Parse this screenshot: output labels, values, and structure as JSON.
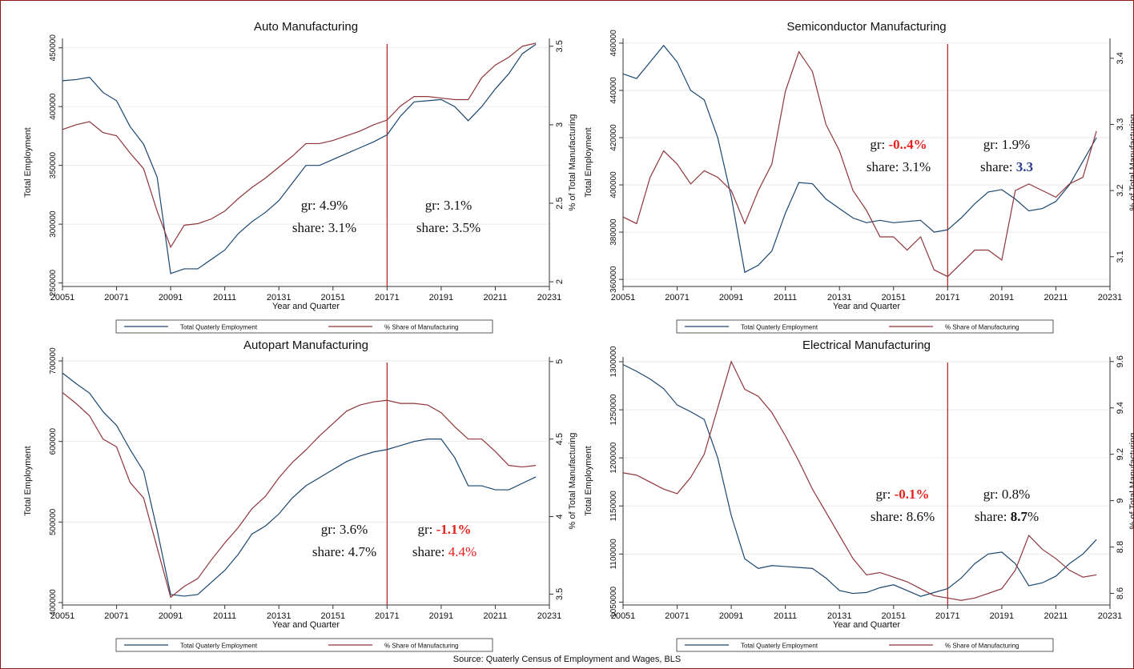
{
  "source": "Source: Quaterly Census of Employment and Wages, BLS",
  "chart_data": [
    {
      "type": "line",
      "title": "Auto Manufacturing",
      "x_label": "Year and Quarter",
      "y_label": "Total Employment",
      "y2_label": "% of Total Manufacturing",
      "x": [
        2005,
        2005.5,
        2006,
        2006.5,
        2007,
        2007.5,
        2008,
        2008.5,
        2009,
        2009.5,
        2010,
        2010.5,
        2011,
        2011.5,
        2012,
        2012.5,
        2013,
        2013.5,
        2014,
        2014.5,
        2015,
        2015.5,
        2016,
        2016.5,
        2017,
        2017.5,
        2018,
        2018.5,
        2019,
        2019.5,
        2020,
        2020.5,
        2021,
        2021.5,
        2022,
        2022.5
      ],
      "xlim": [
        2005,
        2023
      ],
      "xticks": [
        {
          "value": 2005,
          "label": "20051"
        },
        {
          "value": 2007,
          "label": "20071"
        },
        {
          "value": 2009,
          "label": "20091"
        },
        {
          "value": 2011,
          "label": "20111"
        },
        {
          "value": 2013,
          "label": "20131"
        },
        {
          "value": 2015,
          "label": "20151"
        },
        {
          "value": 2017,
          "label": "20171"
        },
        {
          "value": 2019,
          "label": "20191"
        },
        {
          "value": 2021,
          "label": "20211"
        },
        {
          "value": 2023,
          "label": "20231"
        }
      ],
      "ylim": [
        247000,
        458000
      ],
      "yticks": [
        250000,
        300000,
        350000,
        400000,
        450000
      ],
      "y2lim": [
        1.97,
        3.55
      ],
      "y2ticks": [
        2,
        2.5,
        3,
        3.5
      ],
      "grid": true,
      "vline": 2017,
      "series": [
        {
          "name": "Total Quaterly Employment",
          "color": "#1a476f",
          "values": [
            422000,
            423000,
            425000,
            412000,
            405000,
            383000,
            368000,
            340000,
            258000,
            262000,
            262000,
            270000,
            278000,
            292000,
            302000,
            310000,
            320000,
            335000,
            350000,
            350000,
            355000,
            360000,
            365000,
            370000,
            376000,
            392000,
            404000,
            405000,
            406000,
            400000,
            388000,
            400000,
            415000,
            428000,
            445000,
            453000
          ]
        },
        {
          "name": "% Share of Manufacturing",
          "color": "#90353b",
          "axis": "y2",
          "values": [
            2.97,
            3.0,
            3.02,
            2.95,
            2.93,
            2.82,
            2.72,
            2.45,
            2.22,
            2.36,
            2.37,
            2.4,
            2.45,
            2.53,
            2.6,
            2.66,
            2.73,
            2.8,
            2.88,
            2.88,
            2.9,
            2.93,
            2.96,
            3.0,
            3.03,
            3.12,
            3.18,
            3.18,
            3.17,
            3.16,
            3.16,
            3.3,
            3.38,
            3.43,
            3.5,
            3.52
          ]
        }
      ],
      "annotations": [
        [
          [
            {
              "text": "gr: 4.9%"
            }
          ],
          [
            {
              "text": "share: 3.1%"
            }
          ]
        ],
        [
          [
            {
              "text": "gr: 3.1%"
            }
          ],
          [
            {
              "text": "share: 3.5%"
            }
          ]
        ]
      ]
    },
    {
      "type": "line",
      "title": "Semiconductor Manufacturing",
      "x_label": "Year and Quarter",
      "y_label": "Total Employment",
      "y2_label": "% of Total Manufacturing",
      "x": [
        2005,
        2005.5,
        2006,
        2006.5,
        2007,
        2007.5,
        2008,
        2008.5,
        2009,
        2009.5,
        2010,
        2010.5,
        2011,
        2011.5,
        2012,
        2012.5,
        2013,
        2013.5,
        2014,
        2014.5,
        2015,
        2015.5,
        2016,
        2016.5,
        2017,
        2017.5,
        2018,
        2018.5,
        2019,
        2019.5,
        2020,
        2020.5,
        2021,
        2021.5,
        2022,
        2022.5
      ],
      "xlim": [
        2005,
        2023
      ],
      "xticks": [
        {
          "value": 2005,
          "label": "20051"
        },
        {
          "value": 2007,
          "label": "20071"
        },
        {
          "value": 2009,
          "label": "20091"
        },
        {
          "value": 2011,
          "label": "20111"
        },
        {
          "value": 2013,
          "label": "20131"
        },
        {
          "value": 2015,
          "label": "20151"
        },
        {
          "value": 2017,
          "label": "20171"
        },
        {
          "value": 2019,
          "label": "20191"
        },
        {
          "value": 2021,
          "label": "20211"
        },
        {
          "value": 2023,
          "label": "20231"
        }
      ],
      "ylim": [
        357000,
        462000
      ],
      "yticks": [
        360000,
        380000,
        400000,
        420000,
        440000,
        460000
      ],
      "y2lim": [
        3.055,
        3.43
      ],
      "y2ticks": [
        3.1,
        3.2,
        3.3,
        3.4
      ],
      "grid": true,
      "vline": 2017,
      "series": [
        {
          "name": "Total Quaterly Employment",
          "color": "#1a476f",
          "values": [
            447000,
            445000,
            452000,
            459000,
            452000,
            440000,
            436000,
            420000,
            395000,
            363000,
            366000,
            372000,
            388000,
            401000,
            400500,
            394000,
            390000,
            386000,
            384000,
            385000,
            384000,
            384500,
            385000,
            380000,
            381000,
            386000,
            392000,
            397000,
            398000,
            394000,
            389000,
            390000,
            393000,
            400000,
            410000,
            420000
          ]
        },
        {
          "name": "% Share of Manufacturing",
          "color": "#90353b",
          "axis": "y2",
          "values": [
            3.16,
            3.15,
            3.22,
            3.26,
            3.24,
            3.21,
            3.23,
            3.22,
            3.2,
            3.15,
            3.2,
            3.24,
            3.35,
            3.41,
            3.38,
            3.3,
            3.26,
            3.2,
            3.17,
            3.13,
            3.13,
            3.11,
            3.13,
            3.08,
            3.07,
            3.09,
            3.11,
            3.11,
            3.095,
            3.2,
            3.21,
            3.2,
            3.19,
            3.21,
            3.22,
            3.29
          ]
        }
      ],
      "annotations": [
        [
          [
            {
              "text": "gr: "
            },
            {
              "text": "-0..4%",
              "color": "#e8201c",
              "bold": true
            }
          ],
          [
            {
              "text": "share: 3.1%"
            }
          ]
        ],
        [
          [
            {
              "text": "gr: 1.9%"
            }
          ],
          [
            {
              "text": "share: "
            },
            {
              "text": "3.3",
              "color": "#2b3a8f",
              "bold": true
            }
          ]
        ]
      ]
    },
    {
      "type": "line",
      "title": "Autopart Manufacturing",
      "x_label": "Year and Quarter",
      "y_label": "Total Employment",
      "y2_label": "% of Total Manufacturing",
      "x": [
        2005,
        2005.5,
        2006,
        2006.5,
        2007,
        2007.5,
        2008,
        2008.5,
        2009,
        2009.5,
        2010,
        2010.5,
        2011,
        2011.5,
        2012,
        2012.5,
        2013,
        2013.5,
        2014,
        2014.5,
        2015,
        2015.5,
        2016,
        2016.5,
        2017,
        2017.5,
        2018,
        2018.5,
        2019,
        2019.5,
        2020,
        2020.5,
        2021,
        2021.5,
        2022,
        2022.5
      ],
      "xlim": [
        2005,
        2023
      ],
      "xticks": [
        {
          "value": 2005,
          "label": "20051"
        },
        {
          "value": 2007,
          "label": "20071"
        },
        {
          "value": 2009,
          "label": "20091"
        },
        {
          "value": 2011,
          "label": "20111"
        },
        {
          "value": 2013,
          "label": "20131"
        },
        {
          "value": 2015,
          "label": "20151"
        },
        {
          "value": 2017,
          "label": "20171"
        },
        {
          "value": 2019,
          "label": "20191"
        },
        {
          "value": 2021,
          "label": "20211"
        },
        {
          "value": 2023,
          "label": "20231"
        }
      ],
      "ylim": [
        397000,
        705000
      ],
      "yticks": [
        400000,
        500000,
        600000,
        700000
      ],
      "y2lim": [
        3.43,
        5.03
      ],
      "y2ticks": [
        3.5,
        4,
        4.5,
        5
      ],
      "grid": true,
      "vline": 2017,
      "series": [
        {
          "name": "Total Quaterly Employment",
          "color": "#1a476f",
          "values": [
            685000,
            672000,
            660000,
            637000,
            620000,
            590000,
            563000,
            490000,
            410000,
            408000,
            410000,
            425000,
            440000,
            460000,
            485000,
            495000,
            510000,
            530000,
            545000,
            555000,
            565000,
            575000,
            582000,
            587000,
            590000,
            595000,
            600000,
            603000,
            603000,
            580000,
            545000,
            545000,
            540000,
            540000,
            548000,
            556000
          ]
        },
        {
          "name": "% Share of Manufacturing",
          "color": "#90353b",
          "axis": "y2",
          "values": [
            4.8,
            4.73,
            4.65,
            4.5,
            4.45,
            4.22,
            4.12,
            3.8,
            3.48,
            3.55,
            3.6,
            3.72,
            3.83,
            3.93,
            4.05,
            4.13,
            4.25,
            4.35,
            4.43,
            4.52,
            4.6,
            4.68,
            4.72,
            4.74,
            4.75,
            4.73,
            4.73,
            4.72,
            4.67,
            4.58,
            4.5,
            4.5,
            4.42,
            4.33,
            4.32,
            4.33
          ]
        }
      ],
      "annotations": [
        [
          [
            {
              "text": "gr: 3.6%"
            }
          ],
          [
            {
              "text": "share: 4.7%"
            }
          ]
        ],
        [
          [
            {
              "text": "gr: "
            },
            {
              "text": "-1.1%",
              "color": "#e8201c",
              "bold": true
            }
          ],
          [
            {
              "text": "share: "
            },
            {
              "text": "4.4%",
              "color": "#e8201c"
            }
          ]
        ]
      ]
    },
    {
      "type": "line",
      "title": "Electrical Manufacturing",
      "x_label": "Year and Quarter",
      "y_label": "Total Employment",
      "y2_label": "% of Total Manufacturing",
      "x": [
        2005,
        2005.5,
        2006,
        2006.5,
        2007,
        2007.5,
        2008,
        2008.5,
        2009,
        2009.5,
        2010,
        2010.5,
        2011,
        2011.5,
        2012,
        2012.5,
        2013,
        2013.5,
        2014,
        2014.5,
        2015,
        2015.5,
        2016,
        2016.5,
        2017,
        2017.5,
        2018,
        2018.5,
        2019,
        2019.5,
        2020,
        2020.5,
        2021,
        2021.5,
        2022,
        2022.5
      ],
      "xlim": [
        2005,
        2023
      ],
      "xticks": [
        {
          "value": 2005,
          "label": "20051"
        },
        {
          "value": 2007,
          "label": "20071"
        },
        {
          "value": 2009,
          "label": "20091"
        },
        {
          "value": 2011,
          "label": "20111"
        },
        {
          "value": 2013,
          "label": "20131"
        },
        {
          "value": 2015,
          "label": "20151"
        },
        {
          "value": 2017,
          "label": "20171"
        },
        {
          "value": 2019,
          "label": "20191"
        },
        {
          "value": 2021,
          "label": "20211"
        },
        {
          "value": 2023,
          "label": "20231"
        }
      ],
      "ylim": [
        1047000,
        1305000
      ],
      "yticks": [
        1050000,
        1100000,
        1150000,
        1200000,
        1250000,
        1300000
      ],
      "y2lim": [
        8.55,
        9.62
      ],
      "y2ticks": [
        8.6,
        8.8,
        9,
        9.2,
        9.4,
        9.6
      ],
      "grid": true,
      "vline": 2017,
      "series": [
        {
          "name": "Total Quaterly Employment",
          "color": "#1a476f",
          "values": [
            1297000,
            1290000,
            1282000,
            1272000,
            1255000,
            1248000,
            1240000,
            1200000,
            1140000,
            1095000,
            1085000,
            1088000,
            1087000,
            1086000,
            1085000,
            1075000,
            1062000,
            1059000,
            1060000,
            1065000,
            1068000,
            1062000,
            1056000,
            1060000,
            1064000,
            1075000,
            1090000,
            1100000,
            1102000,
            1090000,
            1067000,
            1070000,
            1077000,
            1090000,
            1100000,
            1115000
          ]
        },
        {
          "name": "% Share of Manufacturing",
          "color": "#90353b",
          "axis": "y2",
          "values": [
            9.12,
            9.11,
            9.08,
            9.05,
            9.03,
            9.1,
            9.2,
            9.4,
            9.6,
            9.48,
            9.45,
            9.38,
            9.28,
            9.17,
            9.05,
            8.95,
            8.85,
            8.75,
            8.68,
            8.69,
            8.67,
            8.65,
            8.62,
            8.59,
            8.58,
            8.57,
            8.58,
            8.6,
            8.62,
            8.7,
            8.85,
            8.79,
            8.75,
            8.7,
            8.67,
            8.68
          ]
        }
      ],
      "annotations": [
        [
          [
            {
              "text": "gr: "
            },
            {
              "text": "-0.1%",
              "color": "#e8201c",
              "bold": true
            }
          ],
          [
            {
              "text": "share:  8.6%"
            }
          ]
        ],
        [
          [
            {
              "text": "gr: 0.8%"
            }
          ],
          [
            {
              "text": "share:  "
            },
            {
              "text": "8.7",
              "bold": true
            },
            {
              "text": "%"
            }
          ]
        ]
      ]
    }
  ]
}
